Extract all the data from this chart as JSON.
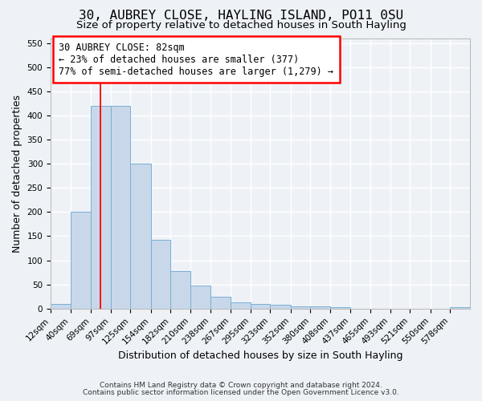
{
  "title": "30, AUBREY CLOSE, HAYLING ISLAND, PO11 0SU",
  "subtitle": "Size of property relative to detached houses in South Hayling",
  "xlabel": "Distribution of detached houses by size in South Hayling",
  "ylabel": "Number of detached properties",
  "bins": [
    "12sqm",
    "40sqm",
    "69sqm",
    "97sqm",
    "125sqm",
    "154sqm",
    "182sqm",
    "210sqm",
    "238sqm",
    "267sqm",
    "295sqm",
    "323sqm",
    "352sqm",
    "380sqm",
    "408sqm",
    "437sqm",
    "465sqm",
    "493sqm",
    "521sqm",
    "550sqm",
    "578sqm"
  ],
  "bin_edges": [
    12,
    40,
    69,
    97,
    125,
    154,
    182,
    210,
    238,
    267,
    295,
    323,
    352,
    380,
    408,
    437,
    465,
    493,
    521,
    550,
    578,
    606
  ],
  "heights": [
    10,
    200,
    420,
    420,
    300,
    143,
    78,
    48,
    25,
    13,
    10,
    8,
    5,
    5,
    3,
    0,
    0,
    0,
    0,
    0,
    3
  ],
  "bar_color": "#c8d8ea",
  "bar_edge_color": "#7aafd4",
  "red_line_x": 82,
  "ylim": [
    0,
    560
  ],
  "yticks": [
    0,
    50,
    100,
    150,
    200,
    250,
    300,
    350,
    400,
    450,
    500,
    550
  ],
  "annotation_title": "30 AUBREY CLOSE: 82sqm",
  "annotation_line1": "← 23% of detached houses are smaller (377)",
  "annotation_line2": "77% of semi-detached houses are larger (1,279) →",
  "footnote1": "Contains HM Land Registry data © Crown copyright and database right 2024.",
  "footnote2": "Contains public sector information licensed under the Open Government Licence v3.0.",
  "bg_color": "#eef2f7",
  "plot_bg_color": "#eef2f7",
  "grid_color": "#ffffff",
  "title_fontsize": 11.5,
  "subtitle_fontsize": 9.5,
  "label_fontsize": 9,
  "tick_fontsize": 7.5,
  "annotation_fontsize": 8.5,
  "footnote_fontsize": 6.5
}
